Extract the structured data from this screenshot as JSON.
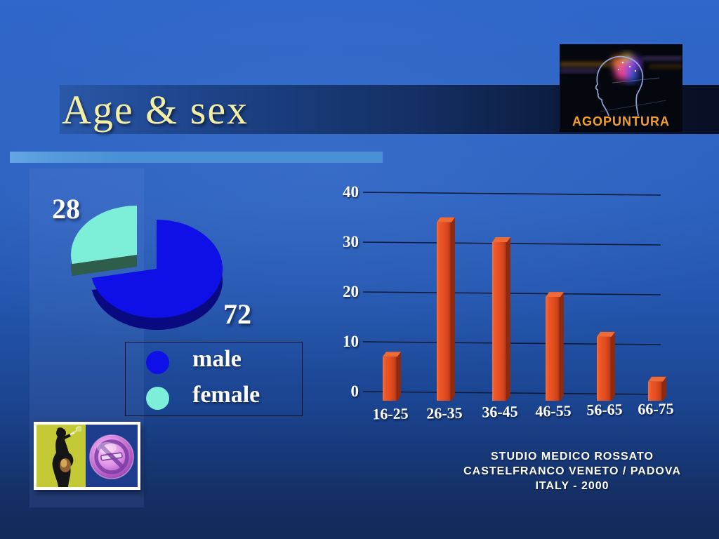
{
  "slide": {
    "title": "Age & sex"
  },
  "logo": {
    "caption": "AGOPUNTURA"
  },
  "chart_data": [
    {
      "type": "pie",
      "title": "",
      "labels": [
        "male",
        "female"
      ],
      "values": [
        72,
        28
      ],
      "colors": [
        "#0f0fe8",
        "#7deed8"
      ],
      "exploded_label": "female",
      "data_label_color": "#ffffff",
      "legend_position": "below-left"
    },
    {
      "type": "bar",
      "title": "",
      "categories": [
        "16-25",
        "26-35",
        "36-45",
        "46-55",
        "56-65",
        "66-75"
      ],
      "values": [
        7,
        34,
        30,
        19,
        11,
        2
      ],
      "xlabel": "",
      "ylabel": "",
      "ylim": [
        0,
        40
      ],
      "yticks": [
        0,
        10,
        20,
        30,
        40
      ],
      "grid": true,
      "bar_color": "#e2542a"
    }
  ],
  "footer": {
    "line1": "STUDIO MEDICO ROSSATO",
    "line2": "CASTELFRANCO VENETO / PADOVA",
    "line3": "ITALY - 2000"
  }
}
